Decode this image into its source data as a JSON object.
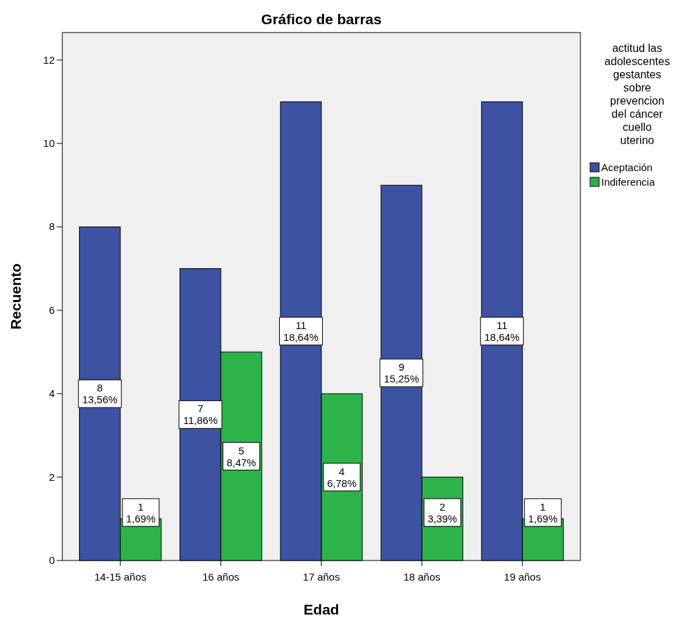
{
  "chart_data": {
    "type": "bar",
    "title": "Gráfico de barras",
    "xlabel": "Edad",
    "ylabel": "Recuento",
    "legend_title": "actitud las adolescentes gestantes sobre prevencion del cáncer cuello uterino",
    "categories": [
      "14-15 años",
      "16 años",
      "17 años",
      "18 años",
      "19 años"
    ],
    "series": [
      {
        "name": "Aceptación",
        "color": "#3d52a1",
        "values": [
          8,
          7,
          11,
          9,
          11
        ],
        "value_labels": [
          "8\n13,56%",
          "7\n11,86%",
          "11\n18,64%",
          "9\n15,25%",
          "11\n18,64%"
        ]
      },
      {
        "name": "Indiferencia",
        "color": "#2db34a",
        "values": [
          1,
          5,
          4,
          2,
          1
        ],
        "value_labels": [
          "1\n1,69%",
          "5\n8,47%",
          "4\n6,78%",
          "2\n3,39%",
          "1\n1,69%"
        ]
      }
    ],
    "ylim": [
      0,
      12.66
    ],
    "yticks": [
      0,
      2,
      4,
      6,
      8,
      10,
      12
    ],
    "grid": false,
    "legend": "right"
  }
}
